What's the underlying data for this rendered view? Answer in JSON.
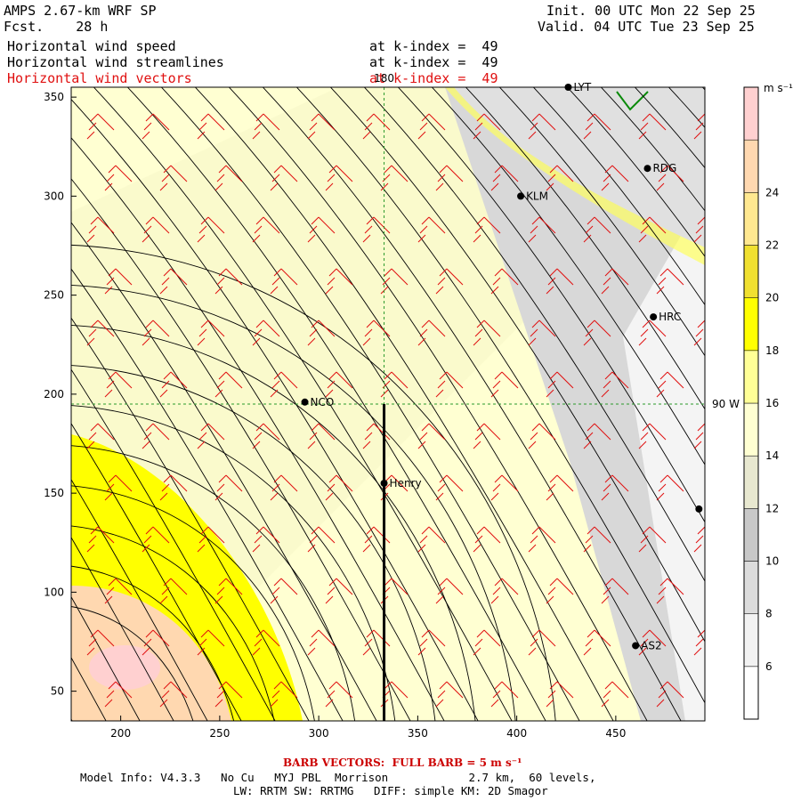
{
  "header": {
    "model": "AMPS 2.67-km WRF SP",
    "fcst": "Fcst.    28 h",
    "init": "Init. 00 UTC Mon 22 Sep 25",
    "valid": "Valid. 04 UTC Tue 23 Sep 25",
    "fields": [
      {
        "name": "Horizontal wind speed",
        "level": "at k-index =  49",
        "color": "#000000"
      },
      {
        "name": "Horizontal wind streamlines",
        "level": "at k-index =  49",
        "color": "#000000"
      },
      {
        "name": "Horizontal wind vectors",
        "level": "at k-index =  49",
        "color": "#e01010"
      }
    ]
  },
  "colorbar": {
    "unit": "m s⁻¹",
    "ticks": [
      "6",
      "8",
      "10",
      "12",
      "14",
      "16",
      "18",
      "20",
      "22",
      "24"
    ],
    "colors": [
      "#ffffff",
      "#f2f2f2",
      "#dcdcdc",
      "#c8c8c8",
      "#e8e8d0",
      "#ffffd2",
      "#ffff96",
      "#ffff00",
      "#f0e030",
      "#ffe890",
      "#ffd8b0",
      "#ffd0d0"
    ]
  },
  "chart_data": {
    "type": "heatmap",
    "title": "Horizontal wind speed",
    "xlabel": "",
    "ylabel": "",
    "xlim": [
      175,
      495
    ],
    "ylim": [
      35,
      355
    ],
    "xticks": [
      200,
      250,
      300,
      350,
      400,
      450
    ],
    "yticks": [
      50,
      100,
      150,
      200,
      250,
      300,
      350
    ],
    "meridian_label": "180",
    "parallel_label": "90 W",
    "meridian_x": 333,
    "parallel_y": 195,
    "stations": [
      {
        "name": "LYT",
        "x": 426,
        "y": 355
      },
      {
        "name": "RDG",
        "x": 466,
        "y": 314
      },
      {
        "name": "KLM",
        "x": 402,
        "y": 300
      },
      {
        "name": "HRC",
        "x": 469,
        "y": 239
      },
      {
        "name": "NCO",
        "x": 293,
        "y": 196
      },
      {
        "name": "Henry",
        "x": 333,
        "y": 155
      },
      {
        "name": "AS2",
        "x": 460,
        "y": 73
      },
      {
        "name": "",
        "x": 492,
        "y": 142
      }
    ],
    "vertical_line": {
      "x": 333,
      "y_from": 35,
      "y_to": 195
    }
  },
  "footer": {
    "barb": "BARB VECTORS:  FULL BARB = 5 m s⁻¹",
    "line1": "Model Info: V4.3.3   No Cu   MYJ PBL  Morrison            2.7 km,  60 levels,",
    "line2": "LW: RRTM SW: RRTMG   DIFF: simple KM: 2D Smagor"
  }
}
